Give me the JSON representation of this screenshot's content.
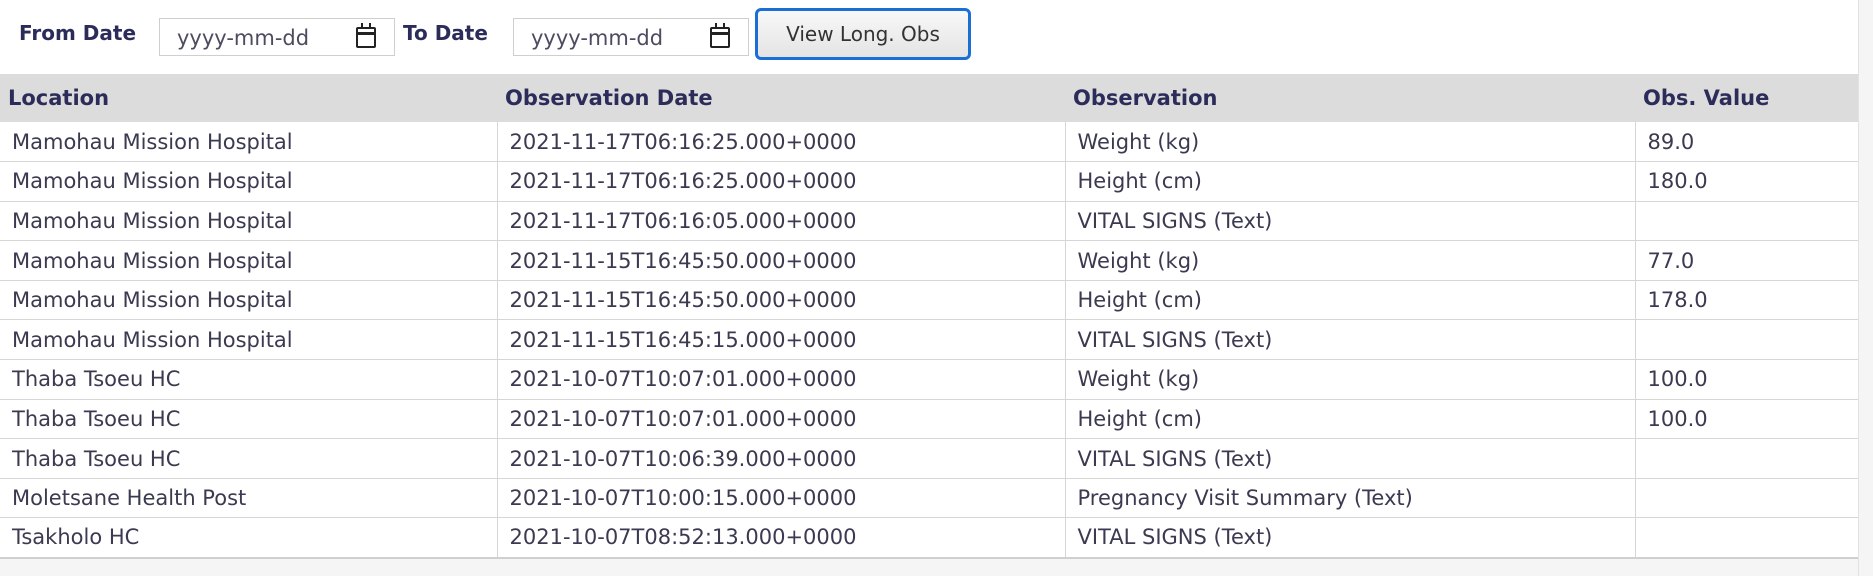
{
  "filters": {
    "from_label": "From Date",
    "from_placeholder": "yyyy-mm-dd",
    "to_label": "To Date",
    "to_placeholder": "yyyy-mm-dd",
    "view_button": "View Long. Obs"
  },
  "table": {
    "headers": [
      "Location",
      "Observation Date",
      "Observation",
      "Obs. Value"
    ],
    "rows": [
      [
        "Mamohau Mission Hospital",
        "2021-11-17T06:16:25.000+0000",
        "Weight (kg)",
        "89.0"
      ],
      [
        "Mamohau Mission Hospital",
        "2021-11-17T06:16:25.000+0000",
        "Height (cm)",
        "180.0"
      ],
      [
        "Mamohau Mission Hospital",
        "2021-11-17T06:16:05.000+0000",
        "VITAL SIGNS (Text)",
        ""
      ],
      [
        "Mamohau Mission Hospital",
        "2021-11-15T16:45:50.000+0000",
        "Weight (kg)",
        "77.0"
      ],
      [
        "Mamohau Mission Hospital",
        "2021-11-15T16:45:50.000+0000",
        "Height (cm)",
        "178.0"
      ],
      [
        "Mamohau Mission Hospital",
        "2021-11-15T16:45:15.000+0000",
        "VITAL SIGNS (Text)",
        ""
      ],
      [
        "Thaba Tsoeu HC",
        "2021-10-07T10:07:01.000+0000",
        "Weight (kg)",
        "100.0"
      ],
      [
        "Thaba Tsoeu HC",
        "2021-10-07T10:07:01.000+0000",
        "Height (cm)",
        "100.0"
      ],
      [
        "Thaba Tsoeu HC",
        "2021-10-07T10:06:39.000+0000",
        "VITAL SIGNS (Text)",
        ""
      ],
      [
        "Moletsane Health Post",
        "2021-10-07T10:00:15.000+0000",
        "Pregnancy Visit Summary (Text)",
        ""
      ],
      [
        "Tsakholo HC",
        "2021-10-07T08:52:13.000+0000",
        "VITAL SIGNS (Text)",
        ""
      ]
    ]
  }
}
